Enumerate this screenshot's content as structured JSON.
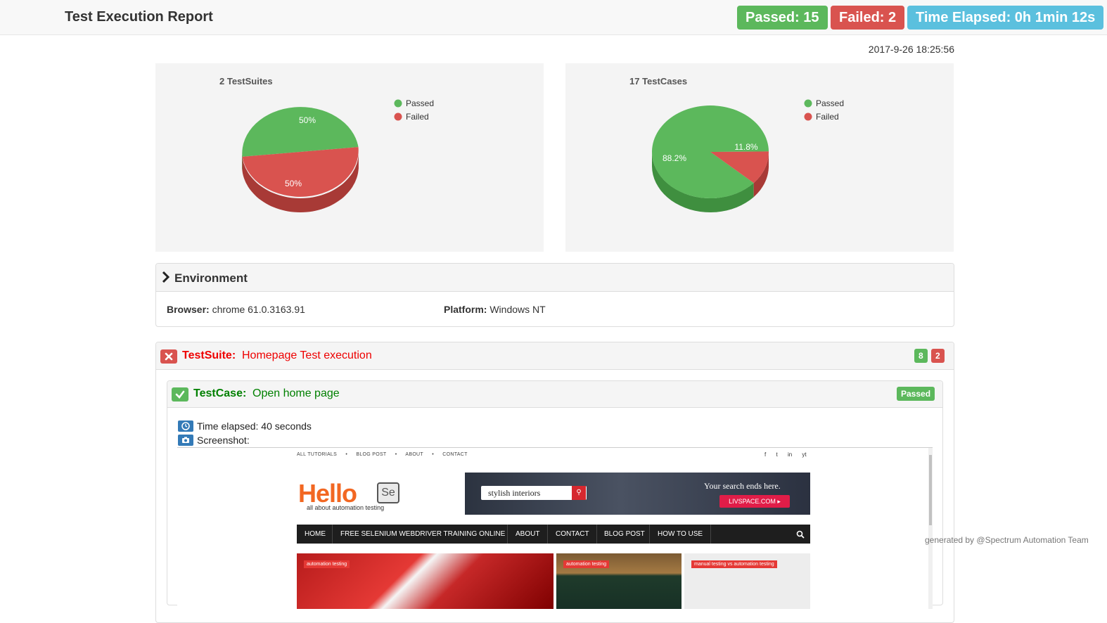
{
  "header": {
    "title": "Test Execution Report",
    "passed_badge": "Passed: 15",
    "failed_badge": "Failed: 2",
    "time_badge": "Time Elapsed: 0h 1min 12s"
  },
  "timestamp": "2017-9-26 18:25:56",
  "colors": {
    "passed": "#5cb85c",
    "failed": "#d9534f",
    "info": "#5bc0de"
  },
  "chart_data": [
    {
      "type": "pie",
      "title": "2 TestSuites",
      "categories": [
        "Passed",
        "Failed"
      ],
      "values": [
        50,
        50
      ],
      "value_labels": [
        "50%",
        "50%"
      ],
      "legend": "top-right",
      "style": "3d"
    },
    {
      "type": "pie",
      "title": "17 TestCases",
      "categories": [
        "Passed",
        "Failed"
      ],
      "values": [
        88.2,
        11.8
      ],
      "value_labels": [
        "88.2%",
        "11.8%"
      ],
      "legend": "top-right",
      "style": "3d"
    }
  ],
  "environment": {
    "title": "Environment",
    "browser_label": "Browser:",
    "browser_value": "chrome 61.0.3163.91",
    "platform_label": "Platform:",
    "platform_value": "Windows NT"
  },
  "suite": {
    "label": "TestSuite:",
    "name": "Homepage Test execution",
    "passed_count": "8",
    "failed_count": "2",
    "testcase": {
      "label": "TestCase:",
      "name": "Open home page",
      "status": "Passed",
      "time_elapsed": "Time elapsed: 40 seconds",
      "screenshot_label": "Screenshot:"
    }
  },
  "screenshot_site": {
    "top_nav": [
      "ALL TUTORIALS",
      "•",
      "BLOG POST",
      "•",
      "ABOUT",
      "•",
      "CONTACT"
    ],
    "social": [
      "f",
      "t",
      "in",
      "yt"
    ],
    "logo_text": "Hello",
    "logo_badge": "Se",
    "logo_tagline": "all about automation testing",
    "ad_search": "stylish interiors",
    "ad_tagline": "Your search ends here.",
    "ad_brand": "LIVSPACE.COM ▸",
    "menu": [
      "HOME",
      "FREE SELENIUM WEBDRIVER TRAINING ONLINE",
      "ABOUT",
      "CONTACT",
      "BLOG POST",
      "HOW TO USE"
    ],
    "thumb_tags": [
      "automation testing",
      "automation testing",
      "manual testing vs automation testing"
    ]
  },
  "footer": "generated by @Spectrum Automation Team"
}
